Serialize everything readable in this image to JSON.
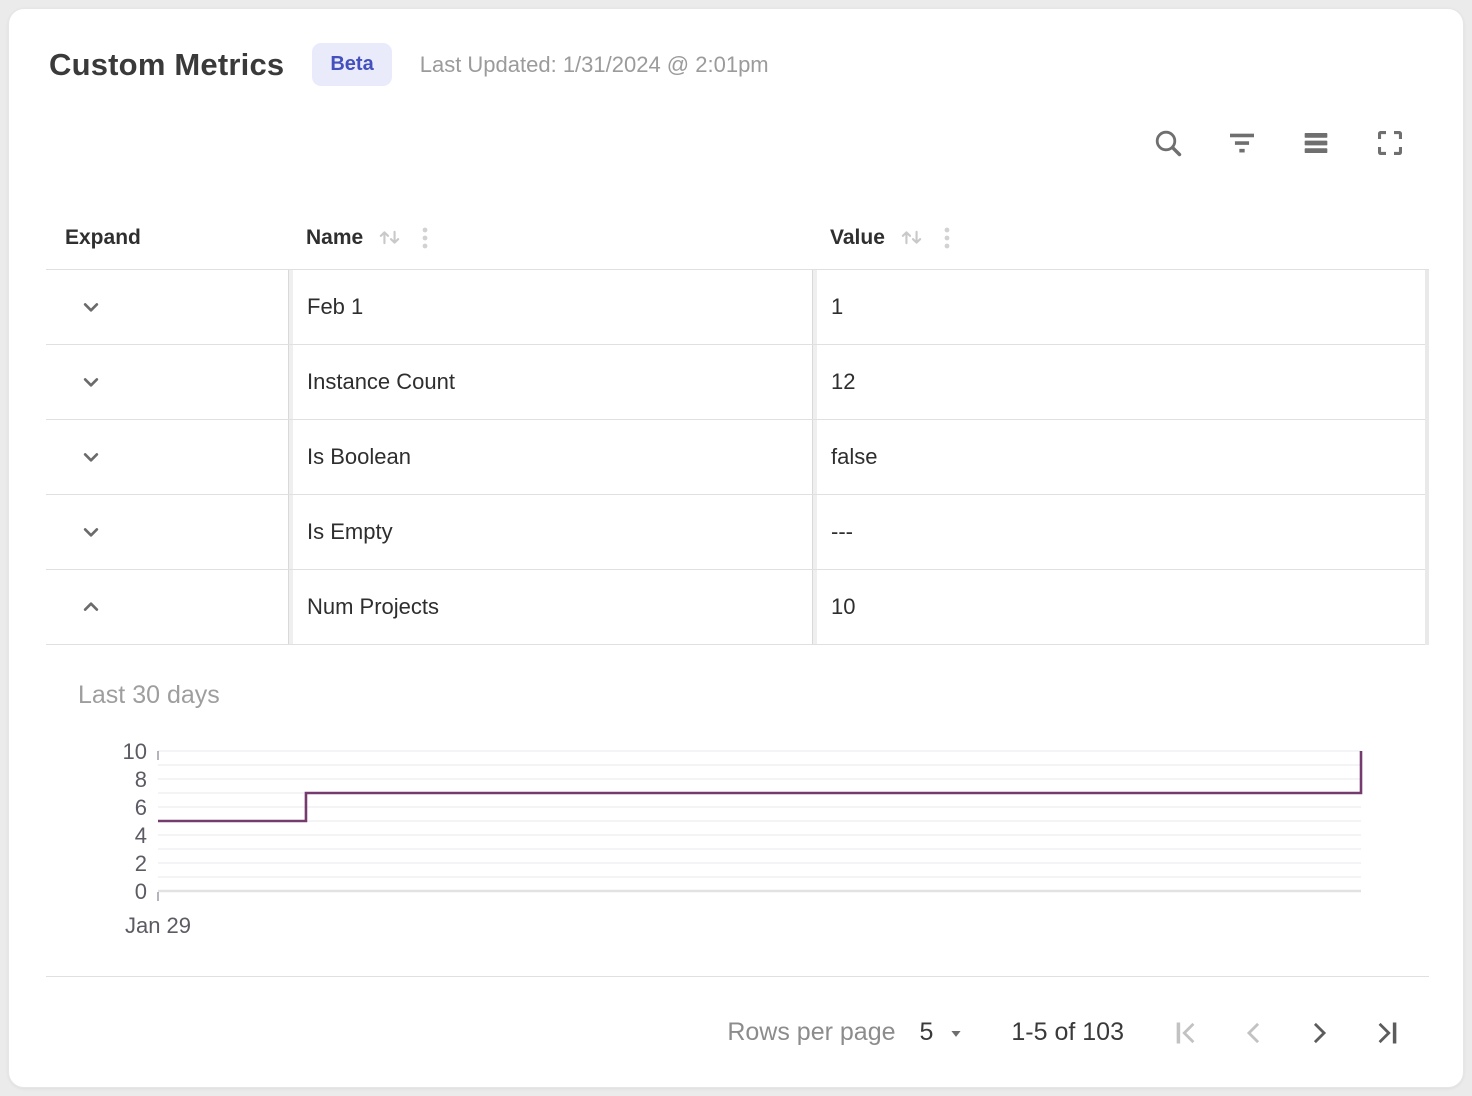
{
  "header": {
    "title": "Custom Metrics",
    "badge": "Beta",
    "last_updated": "Last Updated: 1/31/2024 @ 2:01pm"
  },
  "toolbar": {
    "icons": [
      "search",
      "filter",
      "density",
      "fullscreen"
    ]
  },
  "table": {
    "columns": [
      {
        "label": "Expand",
        "sortable": false
      },
      {
        "label": "Name",
        "sortable": true
      },
      {
        "label": "Value",
        "sortable": true
      }
    ],
    "rows": [
      {
        "name": "Feb 1",
        "value": "1",
        "expanded": false
      },
      {
        "name": "Instance Count",
        "value": "12",
        "expanded": false
      },
      {
        "name": "Is Boolean",
        "value": "false",
        "expanded": false
      },
      {
        "name": "Is Empty",
        "value": "---",
        "expanded": false
      },
      {
        "name": "Num Projects",
        "value": "10",
        "expanded": true
      }
    ]
  },
  "chart_data": {
    "type": "line",
    "subtype": "step",
    "title": "Last 30 days",
    "series": [
      {
        "name": "Num Projects",
        "points_x_fraction": [
          0,
          0.123,
          0.123,
          1,
          1
        ],
        "points_y": [
          5,
          5,
          7,
          7,
          10
        ]
      }
    ],
    "ylim": [
      0,
      10
    ],
    "y_ticks": [
      0,
      2,
      4,
      6,
      8,
      10
    ],
    "x_tick_labels": [
      "Jan 29"
    ],
    "grid": true,
    "legend": false,
    "line_color": "#753a6e"
  },
  "pagination": {
    "rows_per_page_label": "Rows per page",
    "rows_per_page_value": "5",
    "range": "1-5 of 103",
    "first_disabled": true,
    "prev_disabled": true,
    "next_disabled": false,
    "last_disabled": false
  },
  "colors": {
    "badge_bg": "#e9ebfb",
    "badge_text": "#4350bd",
    "chart_line": "#753a6e",
    "table_border": "#e0e0e0",
    "disabled_icon": "#c2c2c2",
    "enabled_icon": "#5c5c5c"
  }
}
